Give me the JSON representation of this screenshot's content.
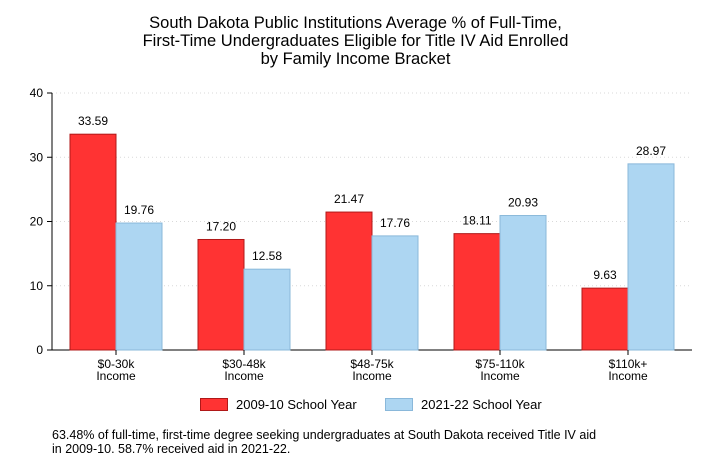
{
  "chart_data": {
    "type": "bar",
    "title": [
      "South Dakota Public Institutions Average % of Full-Time,",
      "First-Time Undergraduates Eligible for Title IV Aid Enrolled",
      "by Family Income Bracket"
    ],
    "categories": [
      [
        "$0-30k",
        "Income"
      ],
      [
        "$30-48k",
        "Income"
      ],
      [
        "$48-75k",
        "Income"
      ],
      [
        "$75-110k",
        "Income"
      ],
      [
        "$110k+",
        "Income"
      ]
    ],
    "series": [
      {
        "name": "2009-10 School Year",
        "values": [
          33.59,
          17.2,
          21.47,
          18.11,
          9.63
        ],
        "labels": [
          "33.59",
          "17.20",
          "21.47",
          "18.11",
          "9.63"
        ],
        "color": "#ff3333",
        "border": "#b01818"
      },
      {
        "name": "2021-22 School Year",
        "values": [
          19.76,
          12.58,
          17.76,
          20.93,
          28.97
        ],
        "labels": [
          "19.76",
          "12.58",
          "17.76",
          "20.93",
          "28.97"
        ],
        "color": "#add6f2",
        "border": "#8ab8da"
      }
    ],
    "yticks": [
      "0",
      "10",
      "20",
      "30",
      "40"
    ],
    "ylim": [
      0,
      40
    ],
    "grid": true,
    "legend": "bottom"
  },
  "footnote": [
    "63.48% of full-time, first-time degree seeking undergraduates at South Dakota received Title IV aid",
    "in 2009-10. 58.7% received aid in 2021-22."
  ]
}
